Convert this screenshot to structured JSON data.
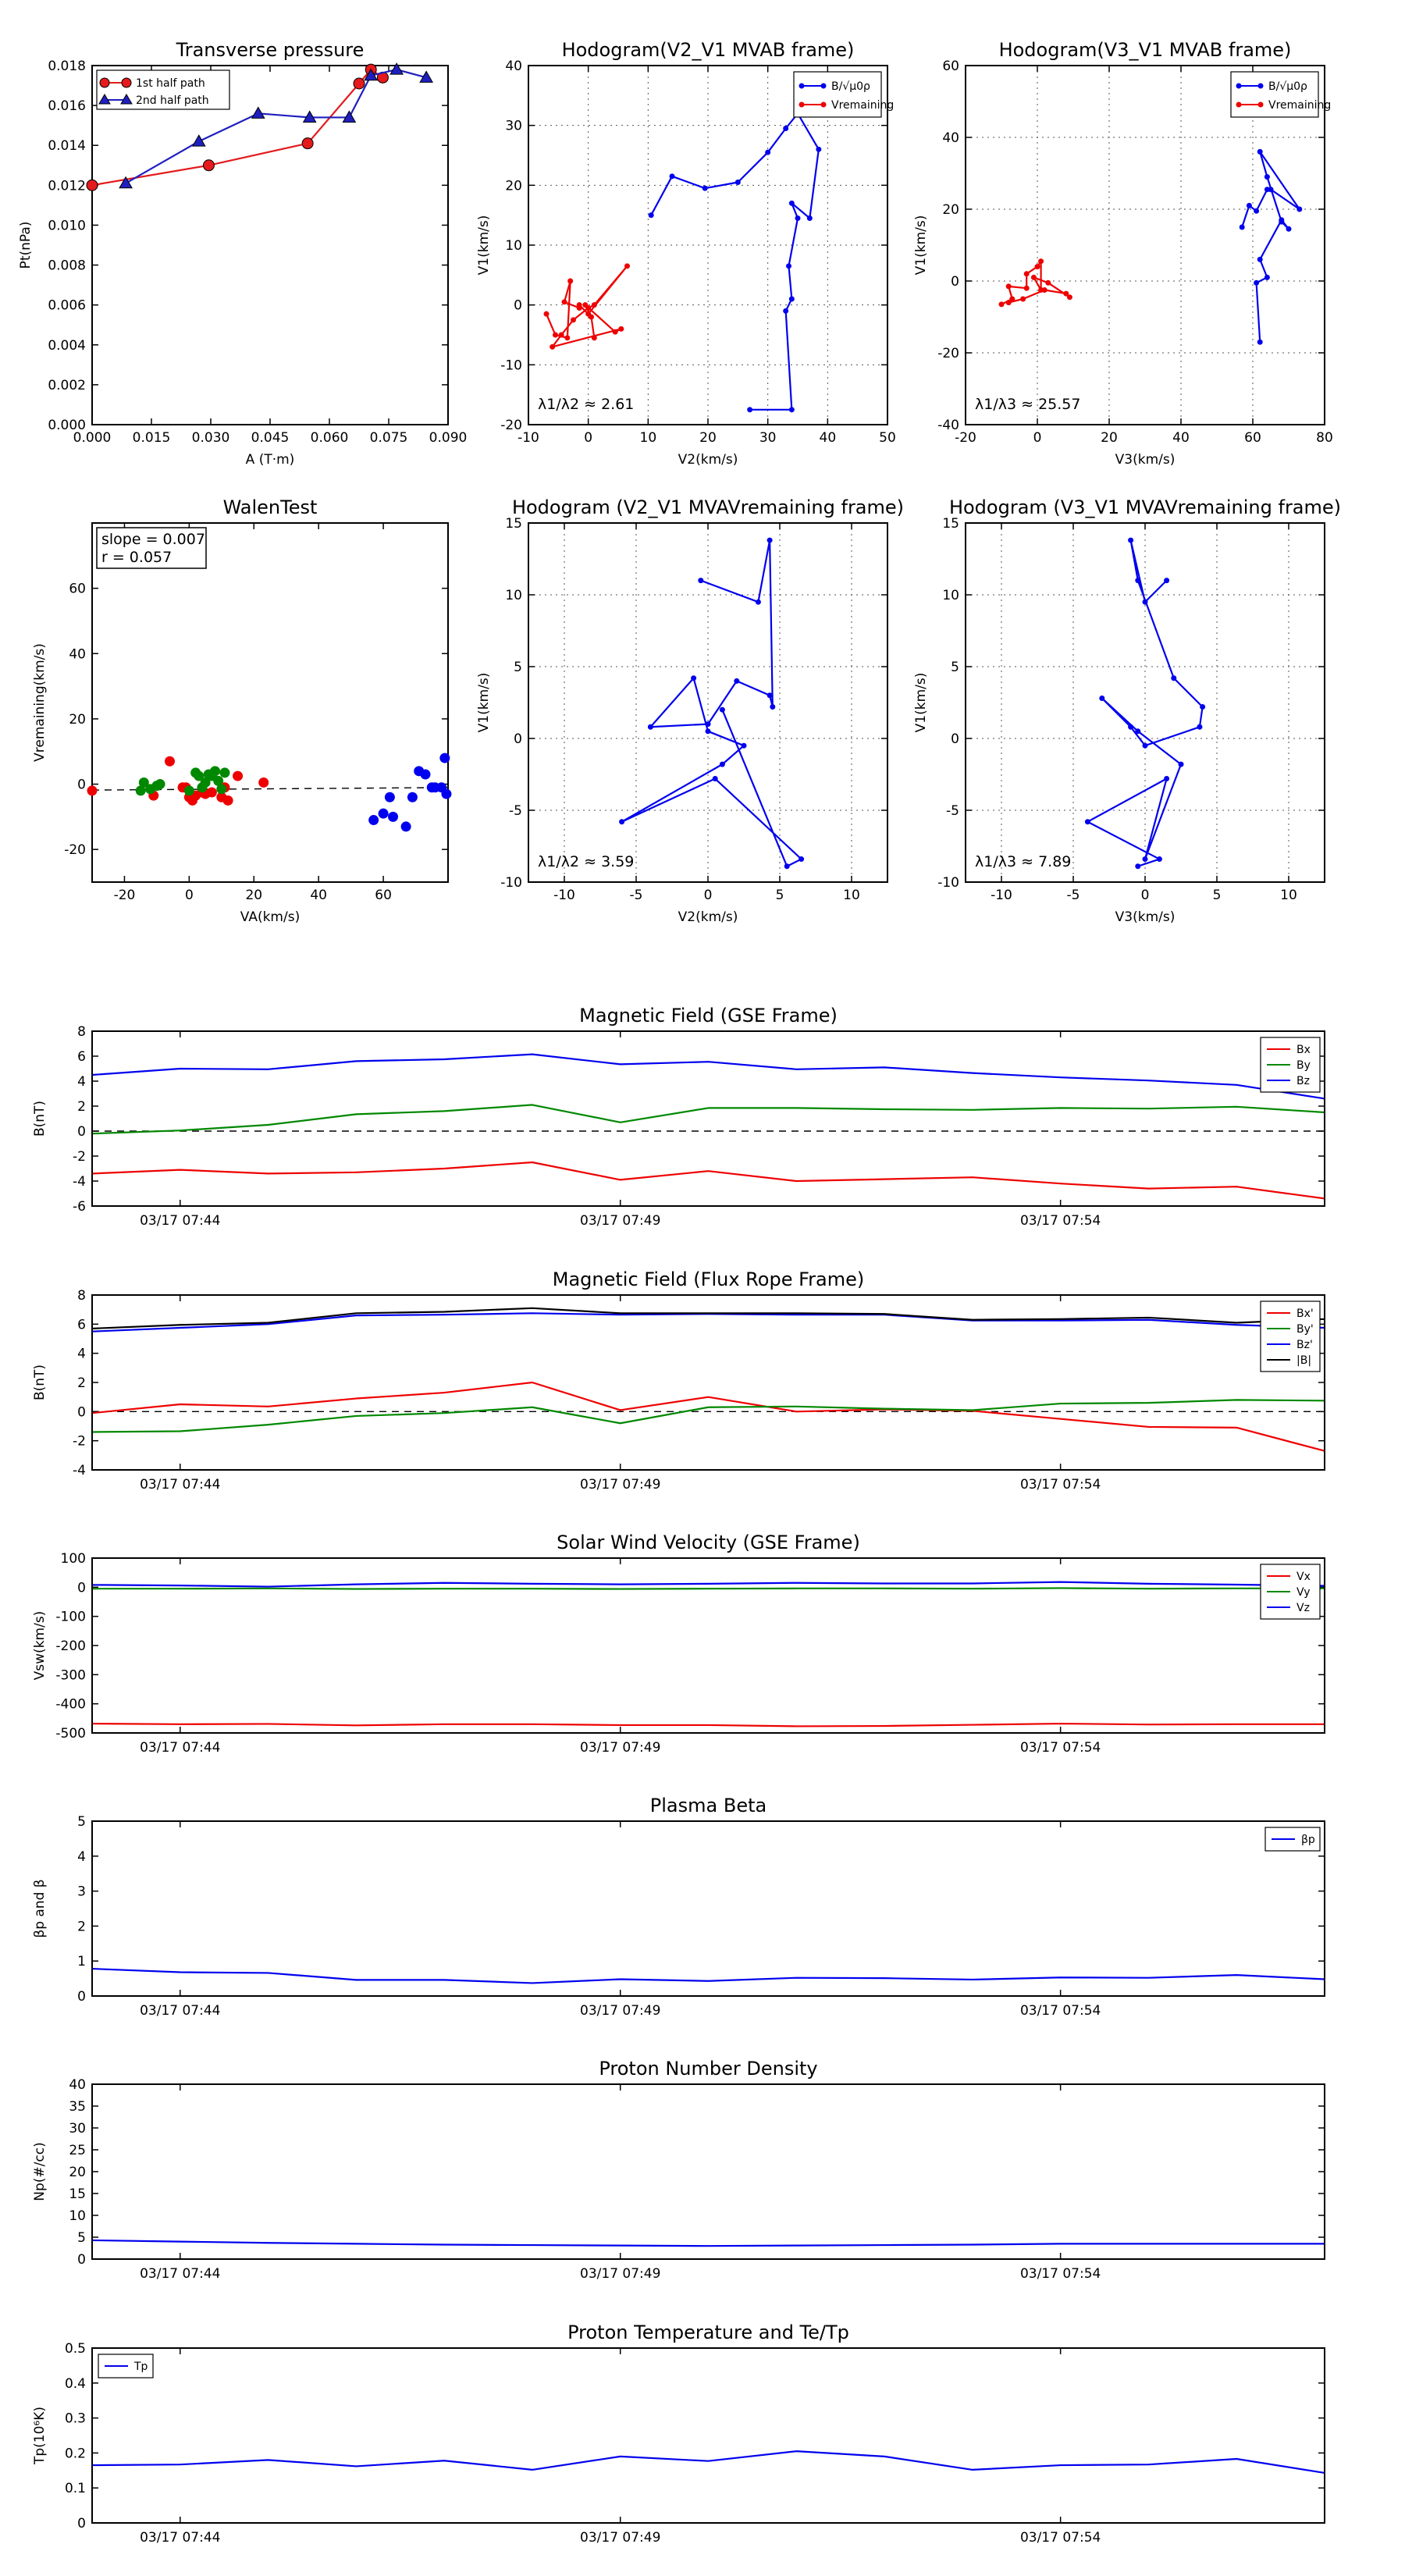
{
  "chart_data": [
    {
      "id": "p1",
      "type": "line",
      "title": "Transverse pressure",
      "xlabel": "A (T·m)",
      "ylabel": "Pt(nPa)",
      "xlim": [
        0,
        0.09
      ],
      "ylim": [
        0,
        0.018
      ],
      "xticks": [
        0,
        0.015,
        0.03,
        0.045,
        0.06,
        0.075,
        0.09
      ],
      "xticklabels": [
        "0.000",
        "0.015",
        "0.030",
        "0.045",
        "0.060",
        "0.075",
        "0.090"
      ],
      "yticks": [
        0,
        0.002,
        0.004,
        0.006,
        0.008,
        0.01,
        0.012,
        0.014,
        0.016,
        0.018
      ],
      "yticklabels": [
        "0.000",
        "0.002",
        "0.004",
        "0.006",
        "0.008",
        "0.010",
        "0.012",
        "0.014",
        "0.016",
        "0.018"
      ],
      "grid": false,
      "legend_position": "top-left",
      "series": [
        {
          "name": "1st half path",
          "color": "#e41a1c",
          "marker": "circle",
          "x": [
            0.0,
            0.0295,
            0.0545,
            0.0675,
            0.0705,
            0.0735
          ],
          "y": [
            0.012,
            0.013,
            0.0141,
            0.0171,
            0.0178,
            0.0174
          ]
        },
        {
          "name": "2nd half path",
          "color": "#1f1fbf",
          "marker": "triangle",
          "x": [
            0.0085,
            0.027,
            0.042,
            0.055,
            0.065,
            0.0705,
            0.077,
            0.0845
          ],
          "y": [
            0.0121,
            0.0142,
            0.0156,
            0.0154,
            0.0154,
            0.0175,
            0.0178,
            0.0174
          ]
        }
      ]
    },
    {
      "id": "p2",
      "type": "line",
      "title": "Hodogram(V2_V1 MVAB frame)",
      "xlabel": "V2(km/s)",
      "ylabel": "V1(km/s)",
      "xlim": [
        -10,
        50
      ],
      "ylim": [
        -20,
        40
      ],
      "xticks": [
        -10,
        0,
        10,
        20,
        30,
        40,
        50
      ],
      "yticks": [
        -20,
        -10,
        0,
        10,
        20,
        30,
        40
      ],
      "grid": true,
      "legend_position": "top-right",
      "annotation": "λ1/λ2 ≈ 2.61",
      "series": [
        {
          "name": "B/√μ0ρ",
          "color": "#0000ee",
          "x": [
            10.5,
            14,
            19.5,
            25,
            30,
            33,
            35,
            38.5,
            37,
            34,
            35,
            33.5,
            34,
            33,
            34,
            27
          ],
          "y": [
            15,
            21.5,
            19.5,
            20.5,
            25.5,
            29.5,
            32,
            26,
            14.5,
            17,
            14.5,
            6.5,
            1,
            -1,
            -17.5,
            -17.5
          ]
        },
        {
          "name": "Vremaining",
          "color": "#ee0000",
          "x": [
            -7,
            -5.5,
            -3.5,
            -3,
            -4,
            -1.5,
            -1.5,
            0,
            6.5,
            1,
            0,
            -2.5,
            -4.5,
            -6,
            5.5,
            4.5,
            -0.5,
            0.5,
            1
          ],
          "y": [
            -1.5,
            -5,
            -5.5,
            4,
            0.5,
            -0.5,
            0,
            -1.5,
            6.5,
            0,
            -0.5,
            -2.5,
            -5,
            -7,
            -4,
            -4.5,
            0,
            -2,
            -5.5
          ]
        }
      ]
    },
    {
      "id": "p3",
      "type": "line",
      "title": "Hodogram(V3_V1 MVAB frame)",
      "xlabel": "V3(km/s)",
      "ylabel": "V1(km/s)",
      "xlim": [
        -20,
        80
      ],
      "ylim": [
        -40,
        60
      ],
      "xticks": [
        -20,
        0,
        20,
        40,
        60,
        80
      ],
      "yticks": [
        -40,
        -20,
        0,
        20,
        40,
        60
      ],
      "grid": true,
      "legend_position": "top-right",
      "annotation": "λ1/λ3 ≈ 25.57",
      "series": [
        {
          "name": "B/√μ0ρ",
          "color": "#0000ee",
          "x": [
            57,
            59,
            61,
            64,
            65,
            73,
            62,
            64,
            68,
            70,
            68,
            62,
            64,
            61,
            62
          ],
          "y": [
            15,
            21,
            19.5,
            25.5,
            25.5,
            20,
            36,
            29,
            16.5,
            14.5,
            17,
            6,
            1,
            -0.5,
            -17
          ]
        },
        {
          "name": "Vremaining",
          "color": "#ee0000",
          "x": [
            -10,
            -7,
            -8,
            -3,
            -3,
            0,
            1,
            1,
            -1,
            3,
            9,
            8,
            2,
            -4,
            -8
          ],
          "y": [
            -6.5,
            -5,
            -1.5,
            -2,
            2,
            4,
            5.5,
            -2.5,
            1,
            -0.5,
            -4.5,
            -3.5,
            -2.5,
            -5,
            -6
          ]
        }
      ]
    },
    {
      "id": "p4",
      "type": "scatter",
      "title": "WalenTest",
      "xlabel": "VA(km/s)",
      "ylabel": "Vremaining(km/s)",
      "xlim": [
        -30,
        80
      ],
      "ylim": [
        -30,
        80
      ],
      "xticks": [
        -20,
        0,
        20,
        40,
        60
      ],
      "yticks": [
        -20,
        0,
        20,
        40,
        60
      ],
      "grid": false,
      "annotation": [
        "slope = 0.007",
        "r = 0.057"
      ],
      "fit_line": {
        "slope": 0.007,
        "intercept": -1.6
      },
      "series": [
        {
          "name": "red",
          "color": "#ee0000",
          "x": [
            -30,
            -6,
            -11,
            -2,
            -1,
            0,
            1,
            2,
            4,
            5,
            7,
            10,
            11,
            12,
            15,
            23
          ],
          "y": [
            -2,
            7,
            -3.5,
            -1,
            -1,
            -4,
            -5,
            -3.5,
            -2.5,
            -3,
            -2.5,
            -4,
            -1,
            -5,
            2.5,
            0.5
          ]
        },
        {
          "name": "green",
          "color": "#008800",
          "x": [
            -15,
            -14,
            -12,
            -10,
            -9,
            0,
            2,
            3,
            4,
            5,
            6,
            7,
            8,
            9,
            10,
            11
          ],
          "y": [
            -2,
            0.5,
            -1.5,
            -0.5,
            0,
            -2,
            3.5,
            2.5,
            -1,
            0.5,
            3,
            2.5,
            4,
            1,
            -1.5,
            3.5
          ]
        },
        {
          "name": "blue",
          "color": "#0000ee",
          "x": [
            57,
            60,
            62,
            63,
            67,
            69,
            71,
            73,
            75,
            76,
            78,
            79,
            79.5
          ],
          "y": [
            -11,
            -9,
            -4,
            -10,
            -13,
            -4,
            4,
            3,
            -1,
            -1,
            -1,
            8,
            -3
          ]
        }
      ]
    },
    {
      "id": "p5",
      "type": "line",
      "title": "Hodogram (V2_V1 MVAVremaining frame)",
      "xlabel": "V2(km/s)",
      "ylabel": "V1(km/s)",
      "xlim": [
        -12.5,
        12.5
      ],
      "ylim": [
        -10,
        15
      ],
      "xticks": [
        -10,
        -5,
        0,
        5,
        10
      ],
      "yticks": [
        -10,
        -5,
        0,
        5,
        10,
        15
      ],
      "grid": true,
      "annotation": "λ1/λ2 ≈ 3.59",
      "series": [
        {
          "name": "V",
          "color": "#0000ee",
          "x": [
            -0.5,
            3.5,
            4.3,
            4.5,
            4.3,
            2,
            0,
            -4,
            -1,
            0,
            2.5,
            1,
            -6,
            0.5,
            6.5,
            5.5,
            1
          ],
          "y": [
            11,
            9.5,
            13.8,
            2.2,
            3,
            4,
            1,
            0.8,
            4.2,
            0.5,
            -0.5,
            -1.8,
            -5.8,
            -2.8,
            -8.4,
            -8.9,
            2
          ]
        }
      ]
    },
    {
      "id": "p6",
      "type": "line",
      "title": "Hodogram (V3_V1 MVAVremaining frame)",
      "xlabel": "V3(km/s)",
      "ylabel": "V1(km/s)",
      "xlim": [
        -12.5,
        12.5
      ],
      "ylim": [
        -10,
        15
      ],
      "xticks": [
        -10,
        -5,
        0,
        5,
        10
      ],
      "yticks": [
        -10,
        -5,
        0,
        5,
        10,
        15
      ],
      "grid": true,
      "annotation": "λ1/λ3 ≈ 7.89",
      "series": [
        {
          "name": "V",
          "color": "#0000ee",
          "x": [
            1.5,
            0,
            -1,
            -0.5,
            2,
            4,
            3.8,
            0,
            -1,
            -3,
            -0.5,
            2.5,
            0,
            1.5,
            -4,
            1,
            -0.5
          ],
          "y": [
            11,
            9.5,
            13.8,
            11,
            4.2,
            2.2,
            0.8,
            -0.5,
            0.8,
            2.8,
            0.5,
            -1.8,
            -8.4,
            -2.8,
            -5.8,
            -8.4,
            -8.9
          ]
        }
      ]
    },
    {
      "id": "p7",
      "type": "line",
      "title": "Magnetic Field (GSE Frame)",
      "ylabel": "B(nT)",
      "ylim": [
        -6,
        8
      ],
      "yticks": [
        -6,
        -4,
        -2,
        0,
        2,
        4,
        6,
        8
      ],
      "xtick_labels": [
        "03/17 07:44",
        "03/17 07:49",
        "03/17 07:54"
      ],
      "xtick_positions": [
        1,
        6,
        11
      ],
      "zero_line": true,
      "legend_position": "top-right",
      "x": [
        0,
        1,
        2,
        3,
        4,
        5,
        6,
        7,
        8,
        9,
        10,
        11,
        12,
        13,
        14
      ],
      "series": [
        {
          "name": "Bx",
          "color": "#ee0000",
          "values": [
            -3.4,
            -3.1,
            -3.4,
            -3.3,
            -3.0,
            -2.5,
            -3.9,
            -3.2,
            -4.0,
            -3.85,
            -3.7,
            -4.2,
            -4.6,
            -4.45,
            -5.4
          ]
        },
        {
          "name": "By",
          "color": "#008800",
          "values": [
            -0.2,
            0.05,
            0.5,
            1.35,
            1.6,
            2.1,
            0.7,
            1.85,
            1.85,
            1.75,
            1.7,
            1.85,
            1.8,
            1.95,
            1.5
          ]
        },
        {
          "name": "Bz",
          "color": "#0000ee",
          "values": [
            4.5,
            5.0,
            4.95,
            5.6,
            5.75,
            6.15,
            5.35,
            5.55,
            4.95,
            5.1,
            4.65,
            4.3,
            4.05,
            3.7,
            2.6
          ]
        }
      ]
    },
    {
      "id": "p8",
      "type": "line",
      "title": "Magnetic Field (Flux Rope Frame)",
      "ylabel": "B(nT)",
      "ylim": [
        -4,
        8
      ],
      "yticks": [
        -4,
        -2,
        0,
        2,
        4,
        6,
        8
      ],
      "xtick_labels": [
        "03/17 07:44",
        "03/17 07:49",
        "03/17 07:54"
      ],
      "xtick_positions": [
        1,
        6,
        11
      ],
      "zero_line": true,
      "legend_position": "top-right",
      "x": [
        0,
        1,
        2,
        3,
        4,
        5,
        6,
        7,
        8,
        9,
        10,
        11,
        12,
        13,
        14
      ],
      "series": [
        {
          "name": "Bx'",
          "color": "#ee0000",
          "values": [
            -0.1,
            0.5,
            0.35,
            0.9,
            1.3,
            2.0,
            0.1,
            1.0,
            0.0,
            0.15,
            0.05,
            -0.5,
            -1.05,
            -1.1,
            -2.7
          ]
        },
        {
          "name": "By'",
          "color": "#008800",
          "values": [
            -1.4,
            -1.35,
            -0.9,
            -0.3,
            -0.1,
            0.3,
            -0.8,
            0.3,
            0.35,
            0.2,
            0.1,
            0.55,
            0.6,
            0.8,
            0.75
          ]
        },
        {
          "name": "Bz'",
          "color": "#0000ee",
          "values": [
            5.5,
            5.75,
            6.0,
            6.6,
            6.65,
            6.75,
            6.65,
            6.7,
            6.65,
            6.65,
            6.25,
            6.25,
            6.3,
            5.95,
            5.75
          ]
        },
        {
          "name": "|B|",
          "color": "#000000",
          "values": [
            5.7,
            5.95,
            6.1,
            6.75,
            6.85,
            7.1,
            6.75,
            6.75,
            6.75,
            6.7,
            6.3,
            6.35,
            6.45,
            6.1,
            6.35
          ]
        }
      ]
    },
    {
      "id": "p9",
      "type": "line",
      "title": "Solar Wind Velocity (GSE Frame)",
      "ylabel": "Vsw(km/s)",
      "ylim": [
        -500,
        100
      ],
      "yticks": [
        -500,
        -400,
        -300,
        -200,
        -100,
        0,
        100
      ],
      "xtick_labels": [
        "03/17 07:44",
        "03/17 07:49",
        "03/17 07:54"
      ],
      "xtick_positions": [
        1,
        6,
        11
      ],
      "legend_position": "top-right",
      "x": [
        0,
        1,
        2,
        3,
        4,
        5,
        6,
        7,
        8,
        9,
        10,
        11,
        12,
        13,
        14
      ],
      "series": [
        {
          "name": "Vx",
          "color": "#ee0000",
          "values": [
            -468,
            -470,
            -469,
            -474,
            -470,
            -470,
            -473,
            -473,
            -477,
            -476,
            -472,
            -468,
            -471,
            -470,
            -470
          ]
        },
        {
          "name": "Vy",
          "color": "#008800",
          "values": [
            -5,
            -5,
            -4,
            -6,
            -5,
            -5,
            -6,
            -5,
            -4,
            -4,
            -5,
            -3,
            -5,
            -4,
            -4
          ]
        },
        {
          "name": "Vz",
          "color": "#0000ee",
          "values": [
            8,
            6,
            2,
            10,
            15,
            12,
            10,
            12,
            15,
            13,
            13,
            18,
            12,
            9,
            5
          ]
        }
      ]
    },
    {
      "id": "p10",
      "type": "line",
      "title": "Plasma Beta",
      "ylabel": "βp and β",
      "ylim": [
        0,
        5
      ],
      "yticks": [
        0,
        1,
        2,
        3,
        4,
        5
      ],
      "xtick_labels": [
        "03/17 07:44",
        "03/17 07:49",
        "03/17 07:54"
      ],
      "xtick_positions": [
        1,
        6,
        11
      ],
      "legend_position": "top-right",
      "x": [
        0,
        1,
        2,
        3,
        4,
        5,
        6,
        7,
        8,
        9,
        10,
        11,
        12,
        13,
        14
      ],
      "series": [
        {
          "name": "βp",
          "color": "#0000ee",
          "values": [
            0.78,
            0.68,
            0.66,
            0.46,
            0.46,
            0.37,
            0.48,
            0.43,
            0.52,
            0.51,
            0.47,
            0.53,
            0.52,
            0.6,
            0.48
          ]
        }
      ]
    },
    {
      "id": "p11",
      "type": "line",
      "title": "Proton Number Density",
      "ylabel": "Np(#/cc)",
      "ylim": [
        0,
        40
      ],
      "yticks": [
        0,
        5,
        10,
        15,
        20,
        25,
        30,
        35,
        40
      ],
      "xtick_labels": [
        "03/17 07:44",
        "03/17 07:49",
        "03/17 07:54"
      ],
      "xtick_positions": [
        1,
        6,
        11
      ],
      "x": [
        0,
        1,
        2,
        3,
        4,
        5,
        6,
        7,
        8,
        9,
        10,
        11,
        12,
        13,
        14
      ],
      "series": [
        {
          "name": "Np",
          "color": "#0000ee",
          "values": [
            4.3,
            4.0,
            3.7,
            3.5,
            3.3,
            3.2,
            3.1,
            3.0,
            3.1,
            3.2,
            3.3,
            3.5,
            3.5,
            3.5,
            3.5
          ]
        }
      ]
    },
    {
      "id": "p12",
      "type": "line",
      "title": "Proton Temperature and Te/Tp",
      "ylabel": "Tp(10⁶K)",
      "ylim": [
        0,
        0.5
      ],
      "yticks": [
        0,
        0.1,
        0.2,
        0.3,
        0.4,
        0.5
      ],
      "xtick_labels": [
        "03/17 07:44",
        "03/17 07:49",
        "03/17 07:54"
      ],
      "xtick_positions": [
        1,
        6,
        11
      ],
      "legend_position": "top-left",
      "x": [
        0,
        1,
        2,
        3,
        4,
        5,
        6,
        7,
        8,
        9,
        10,
        11,
        12,
        13,
        14
      ],
      "series": [
        {
          "name": "Tp",
          "color": "#0000ee",
          "values": [
            0.165,
            0.167,
            0.18,
            0.162,
            0.178,
            0.152,
            0.19,
            0.177,
            0.205,
            0.19,
            0.152,
            0.165,
            0.167,
            0.183,
            0.143
          ]
        }
      ]
    }
  ]
}
